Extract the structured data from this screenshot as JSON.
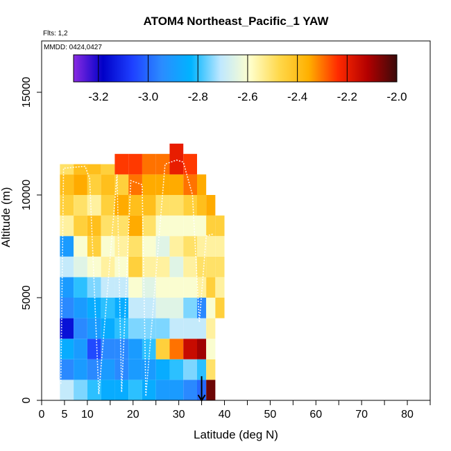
{
  "chart_data": {
    "type": "heatmap",
    "title": "ATOM4 Northeast_Pacific_1 YAW",
    "notes": [
      "Flts: 1,2",
      "MMDD: 0424,0427"
    ],
    "xlabel": "Latitude (deg N)",
    "ylabel": "Altitude (m)",
    "xlim": [
      0,
      85
    ],
    "ylim": [
      0,
      17500
    ],
    "x_ticks": [
      {
        "value": 0,
        "label": "0"
      },
      {
        "value": 5,
        "label": "5"
      },
      {
        "value": 10,
        "label": "10"
      },
      {
        "value": 20,
        "label": "20"
      },
      {
        "value": 30,
        "label": "30"
      },
      {
        "value": 40,
        "label": "40"
      },
      {
        "value": 50,
        "label": "50"
      },
      {
        "value": 60,
        "label": "60"
      },
      {
        "value": 70,
        "label": "70"
      },
      {
        "value": 80,
        "label": "80"
      }
    ],
    "x_minor_ticks": [
      15,
      25,
      35,
      45,
      55,
      65,
      75,
      85
    ],
    "y_ticks": [
      {
        "value": 0,
        "label": "0"
      },
      {
        "value": 5000,
        "label": "5000"
      },
      {
        "value": 10000,
        "label": "10000"
      },
      {
        "value": 15000,
        "label": "15000"
      }
    ],
    "colorbar": {
      "range": [
        -3.3,
        -2.0
      ],
      "ticks": [
        {
          "value": -3.2,
          "label": "-3.2"
        },
        {
          "value": -3.0,
          "label": "-3.0"
        },
        {
          "value": -2.8,
          "label": "-2.8"
        },
        {
          "value": -2.6,
          "label": "-2.6"
        },
        {
          "value": -2.4,
          "label": "-2.4"
        },
        {
          "value": -2.2,
          "label": "-2.2"
        },
        {
          "value": -2.0,
          "label": "-2.0"
        }
      ],
      "colors": [
        "#8a2be2",
        "#0000c8",
        "#1e40ff",
        "#2b8cff",
        "#00b4ff",
        "#bfe8ff",
        "#ffffcc",
        "#ffd84a",
        "#ffb000",
        "#ff2a00",
        "#b30000",
        "#3a0a0a"
      ]
    },
    "cells": [
      {
        "lat": [
          4,
          7
        ],
        "bins": [
          [
            0,
            1,
            -2.7
          ],
          [
            1,
            2,
            -2.95
          ],
          [
            2,
            3,
            -2.85
          ],
          [
            3,
            4,
            -3.15
          ],
          [
            4,
            5,
            -2.95
          ],
          [
            5,
            6,
            -2.9
          ],
          [
            6,
            7,
            -2.7
          ],
          [
            7,
            8,
            -2.9
          ],
          [
            8,
            9,
            -2.55
          ],
          [
            9,
            10,
            -2.45
          ],
          [
            10,
            11,
            -2.4
          ],
          [
            11,
            11.5,
            -2.5
          ]
        ]
      },
      {
        "lat": [
          7,
          10
        ],
        "bins": [
          [
            0,
            1,
            -2.75
          ],
          [
            1,
            2,
            -2.9
          ],
          [
            2,
            3,
            -2.9
          ],
          [
            3,
            4,
            -2.95
          ],
          [
            4,
            5,
            -2.9
          ],
          [
            5,
            6,
            -2.8
          ],
          [
            6,
            7,
            -2.65
          ],
          [
            7,
            8,
            -2.6
          ],
          [
            8,
            9,
            -2.45
          ],
          [
            9,
            10,
            -2.5
          ],
          [
            10,
            11,
            -2.35
          ],
          [
            11,
            11.5,
            -2.4
          ]
        ]
      },
      {
        "lat": [
          10,
          13
        ],
        "bins": [
          [
            0,
            1,
            -2.8
          ],
          [
            1,
            2,
            -2.95
          ],
          [
            2,
            3,
            -3.05
          ],
          [
            3,
            4,
            -2.9
          ],
          [
            4,
            5,
            -2.85
          ],
          [
            5,
            6,
            -2.75
          ],
          [
            6,
            7,
            -2.6
          ],
          [
            7,
            8,
            -2.45
          ],
          [
            8,
            9,
            -2.4
          ],
          [
            9,
            10,
            -2.55
          ],
          [
            10,
            11,
            -2.45
          ],
          [
            11,
            11.5,
            -2.4
          ]
        ]
      },
      {
        "lat": [
          13,
          16
        ],
        "bins": [
          [
            0,
            1,
            -2.85
          ],
          [
            1,
            2,
            -2.9
          ],
          [
            2,
            3,
            -2.95
          ],
          [
            3,
            4,
            -2.85
          ],
          [
            4,
            5,
            -2.8
          ],
          [
            5,
            6,
            -2.7
          ],
          [
            6,
            7,
            -2.55
          ],
          [
            7,
            8,
            -2.6
          ],
          [
            8,
            9,
            -2.5
          ],
          [
            9,
            10,
            -2.45
          ],
          [
            10,
            11,
            -2.4
          ],
          [
            11,
            11.5,
            -2.45
          ]
        ]
      },
      {
        "lat": [
          16,
          19
        ],
        "bins": [
          [
            0,
            1,
            -2.85
          ],
          [
            1,
            2,
            -2.95
          ],
          [
            2,
            3,
            -2.95
          ],
          [
            3,
            4,
            -2.8
          ],
          [
            4,
            5,
            -2.85
          ],
          [
            5,
            6,
            -2.7
          ],
          [
            6,
            7,
            -2.6
          ],
          [
            7,
            8,
            -2.55
          ],
          [
            8,
            9,
            -2.5
          ],
          [
            9,
            10,
            -2.35
          ],
          [
            10,
            11,
            -2.45
          ],
          [
            11,
            12,
            -2.25
          ]
        ]
      },
      {
        "lat": [
          19,
          22
        ],
        "bins": [
          [
            0,
            1,
            -2.8
          ],
          [
            1,
            2,
            -2.9
          ],
          [
            2,
            3,
            -2.9
          ],
          [
            3,
            4,
            -2.75
          ],
          [
            4,
            5,
            -2.7
          ],
          [
            5,
            6,
            -2.6
          ],
          [
            6,
            7,
            -2.45
          ],
          [
            7,
            8,
            -2.5
          ],
          [
            8,
            9,
            -2.35
          ],
          [
            9,
            10,
            -2.4
          ],
          [
            10,
            11,
            -2.3
          ],
          [
            11,
            12,
            -2.25
          ]
        ]
      },
      {
        "lat": [
          22,
          25
        ],
        "bins": [
          [
            0,
            1,
            -2.85
          ],
          [
            1,
            2,
            -2.9
          ],
          [
            2,
            3,
            -2.8
          ],
          [
            3,
            4,
            -2.75
          ],
          [
            4,
            5,
            -2.7
          ],
          [
            5,
            6,
            -2.65
          ],
          [
            6,
            7,
            -2.55
          ],
          [
            7,
            8,
            -2.6
          ],
          [
            8,
            9,
            -2.5
          ],
          [
            9,
            10,
            -2.4
          ],
          [
            10,
            11,
            -2.35
          ],
          [
            11,
            12,
            -2.3
          ]
        ]
      },
      {
        "lat": [
          25,
          28
        ],
        "bins": [
          [
            0,
            1,
            -2.9
          ],
          [
            1,
            2,
            -2.85
          ],
          [
            2,
            3,
            -2.45
          ],
          [
            3,
            4,
            -2.75
          ],
          [
            4,
            5,
            -2.65
          ],
          [
            5,
            6,
            -2.6
          ],
          [
            6,
            7,
            -2.55
          ],
          [
            7,
            8,
            -2.65
          ],
          [
            8,
            9,
            -2.6
          ],
          [
            9,
            10,
            -2.5
          ],
          [
            10,
            11,
            -2.35
          ],
          [
            11,
            12,
            -2.3
          ]
        ]
      },
      {
        "lat": [
          28,
          31
        ],
        "bins": [
          [
            0,
            1,
            -2.9
          ],
          [
            1,
            2,
            -2.8
          ],
          [
            2,
            3,
            -2.3
          ],
          [
            3,
            4,
            -2.7
          ],
          [
            4,
            5,
            -2.65
          ],
          [
            5,
            6,
            -2.6
          ],
          [
            6,
            7,
            -2.65
          ],
          [
            7,
            8,
            -2.55
          ],
          [
            8,
            9,
            -2.6
          ],
          [
            9,
            10,
            -2.5
          ],
          [
            10,
            11,
            -2.35
          ],
          [
            11,
            12.5,
            -2.2
          ]
        ]
      },
      {
        "lat": [
          31,
          34
        ],
        "bins": [
          [
            0,
            1,
            -2.95
          ],
          [
            1,
            2,
            -2.75
          ],
          [
            2,
            3,
            -2.15
          ],
          [
            3,
            4,
            -2.7
          ],
          [
            4,
            5,
            -2.75
          ],
          [
            5,
            6,
            -2.6
          ],
          [
            6,
            7,
            -2.55
          ],
          [
            7,
            8,
            -2.5
          ],
          [
            8,
            9,
            -2.6
          ],
          [
            9,
            10,
            -2.45
          ],
          [
            10,
            11,
            -2.3
          ],
          [
            11,
            12,
            -2.25
          ]
        ]
      },
      {
        "lat": [
          34,
          36
        ],
        "bins": [
          [
            0,
            1,
            -3.0
          ],
          [
            1,
            2,
            -2.8
          ],
          [
            2,
            3,
            -2.1
          ],
          [
            3,
            4,
            -2.7
          ],
          [
            4,
            5,
            -2.95
          ],
          [
            5,
            6,
            -2.55
          ],
          [
            6,
            7,
            -2.5
          ],
          [
            7,
            8,
            -2.55
          ],
          [
            8,
            9,
            -2.6
          ],
          [
            9,
            10,
            -2.4
          ],
          [
            10,
            11,
            -2.35
          ]
        ]
      },
      {
        "lat": [
          36,
          38
        ],
        "bins": [
          [
            0,
            1,
            -2.05
          ],
          [
            1,
            2,
            -2.5
          ],
          [
            2,
            3,
            -2.6
          ],
          [
            3,
            4,
            -2.55
          ],
          [
            4,
            5,
            -2.6
          ],
          [
            5,
            6,
            -2.45
          ],
          [
            6,
            7,
            -2.5
          ],
          [
            7,
            8,
            -2.55
          ],
          [
            8,
            9,
            -2.45
          ],
          [
            9,
            10,
            -2.35
          ]
        ]
      },
      {
        "lat": [
          38,
          40
        ],
        "bins": [
          [
            4,
            5,
            -2.45
          ],
          [
            5,
            6,
            -2.55
          ],
          [
            6,
            7,
            -2.5
          ],
          [
            7,
            8,
            -2.55
          ],
          [
            8,
            9,
            -2.45
          ]
        ]
      }
    ],
    "flight_track": [
      [
        4.2,
        800
      ],
      [
        4.8,
        11300
      ],
      [
        9.5,
        11400
      ],
      [
        10.5,
        10800
      ],
      [
        12.5,
        300
      ],
      [
        16.5,
        11000
      ],
      [
        17.5,
        400
      ],
      [
        19.5,
        10700
      ],
      [
        22,
        10500
      ],
      [
        22.8,
        200
      ],
      [
        27,
        11500
      ],
      [
        29.5,
        11700
      ],
      [
        31,
        11600
      ],
      [
        33,
        10000
      ],
      [
        34.5,
        3800
      ],
      [
        36,
        8000
      ],
      [
        37.5,
        8100
      ]
    ],
    "marker": {
      "lat": 35,
      "alt": 500,
      "symbol": "down-arrow"
    }
  }
}
